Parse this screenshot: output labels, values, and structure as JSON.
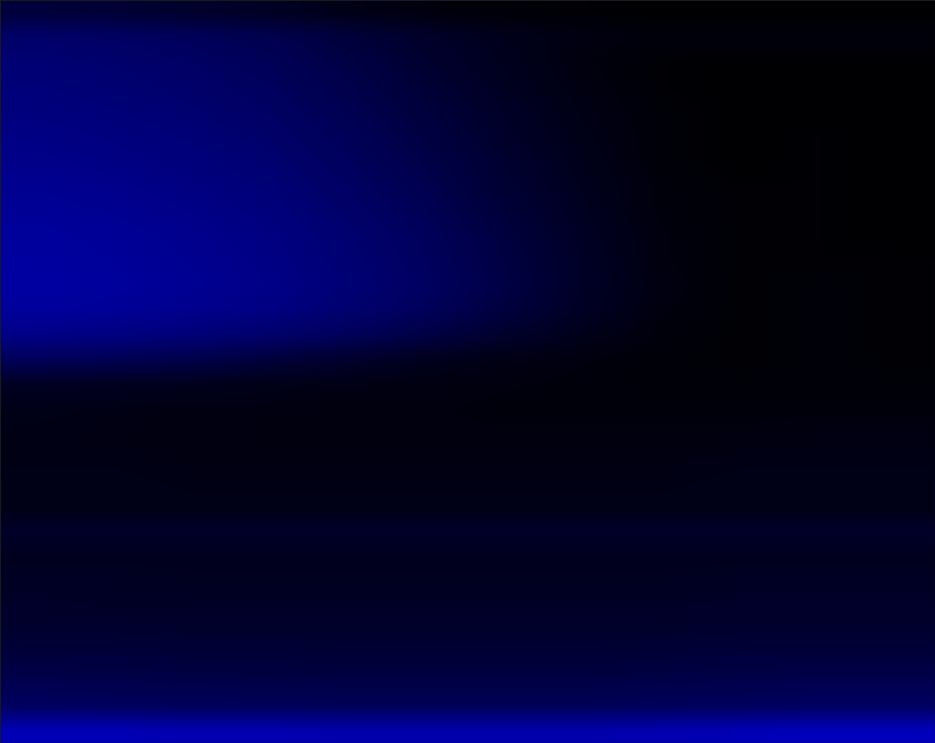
{
  "chart_data": {
    "type": "heatmap",
    "tick_labels": false,
    "color_range": [
      0,
      100
    ],
    "cells": [
      [
        20,
        18,
        15,
        12,
        8,
        5,
        3,
        2,
        1,
        1,
        1,
        1
      ],
      [
        35,
        33,
        30,
        26,
        20,
        14,
        9,
        6,
        4,
        4,
        4,
        4
      ],
      [
        38,
        36,
        33,
        29,
        23,
        16,
        10,
        5,
        2,
        1,
        1,
        1
      ],
      [
        40,
        38,
        35,
        31,
        25,
        18,
        11,
        6,
        2,
        1,
        1,
        1
      ],
      [
        42,
        40,
        37,
        33,
        27,
        20,
        13,
        7,
        3,
        1,
        1,
        1
      ],
      [
        44,
        42,
        39,
        35,
        29,
        22,
        14,
        8,
        3,
        1,
        2,
        1
      ],
      [
        46,
        44,
        41,
        37,
        31,
        24,
        16,
        9,
        3,
        1,
        2,
        1
      ],
      [
        48,
        46,
        43,
        39,
        33,
        26,
        17,
        10,
        4,
        2,
        2,
        1
      ],
      [
        50,
        48,
        45,
        41,
        35,
        28,
        19,
        11,
        4,
        2,
        2,
        1
      ],
      [
        52,
        50,
        47,
        43,
        37,
        30,
        21,
        12,
        5,
        2,
        2,
        1
      ],
      [
        53,
        51,
        48,
        44,
        38,
        31,
        22,
        13,
        5,
        2,
        2,
        2
      ],
      [
        54,
        52,
        49,
        45,
        39,
        32,
        23,
        13,
        6,
        2,
        3,
        2
      ],
      [
        52,
        50,
        47,
        43,
        37,
        30,
        21,
        12,
        5,
        2,
        3,
        2
      ],
      [
        45,
        43,
        40,
        36,
        30,
        23,
        15,
        9,
        4,
        2,
        3,
        2
      ],
      [
        30,
        28,
        25,
        20,
        15,
        10,
        7,
        5,
        3,
        2,
        3,
        2
      ],
      [
        12,
        11,
        10,
        8,
        7,
        6,
        5,
        4,
        3,
        3,
        3,
        3
      ],
      [
        8,
        7,
        6,
        6,
        5,
        5,
        4,
        4,
        4,
        4,
        4,
        4
      ],
      [
        7,
        6,
        6,
        5,
        5,
        5,
        5,
        5,
        5,
        5,
        6,
        6
      ],
      [
        7,
        7,
        6,
        6,
        6,
        6,
        6,
        6,
        6,
        7,
        7,
        7
      ],
      [
        8,
        8,
        7,
        7,
        7,
        7,
        7,
        7,
        7,
        8,
        8,
        8
      ],
      [
        8,
        8,
        8,
        8,
        8,
        8,
        8,
        8,
        8,
        8,
        8,
        8
      ],
      [
        14,
        14,
        14,
        14,
        14,
        14,
        14,
        14,
        14,
        14,
        14,
        14
      ],
      [
        10,
        10,
        10,
        10,
        10,
        10,
        10,
        10,
        10,
        10,
        10,
        10
      ],
      [
        12,
        12,
        11,
        11,
        11,
        11,
        11,
        11,
        11,
        12,
        12,
        12
      ],
      [
        14,
        13,
        13,
        13,
        13,
        13,
        13,
        13,
        13,
        14,
        14,
        14
      ],
      [
        16,
        16,
        15,
        15,
        15,
        15,
        15,
        15,
        15,
        16,
        16,
        16
      ],
      [
        20,
        20,
        19,
        19,
        18,
        18,
        18,
        18,
        19,
        20,
        20,
        20
      ],
      [
        26,
        25,
        24,
        23,
        23,
        23,
        23,
        23,
        24,
        25,
        26,
        26
      ],
      [
        32,
        31,
        30,
        30,
        29,
        29,
        29,
        29,
        30,
        31,
        32,
        32
      ],
      [
        60,
        60,
        58,
        58,
        57,
        57,
        57,
        57,
        58,
        60,
        62,
        62
      ]
    ]
  }
}
